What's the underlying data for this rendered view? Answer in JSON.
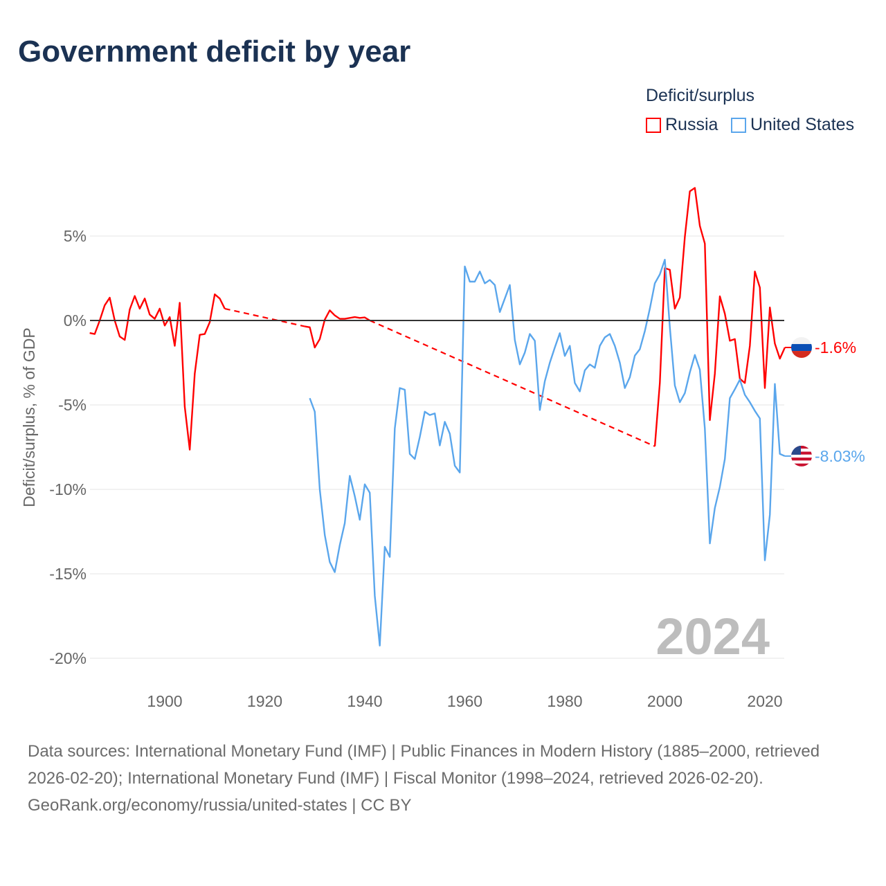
{
  "title": "Government deficit by year",
  "legend": {
    "title": "Deficit/surplus",
    "items": [
      {
        "label": "Russia",
        "color": "#ff0000"
      },
      {
        "label": "United States",
        "color": "#5aa6ec"
      }
    ]
  },
  "footer": {
    "sources": "Data sources: International Monetary Fund (IMF) | Public Finances in Modern History (1885–2000, retrieved 2026-02-20); International Monetary Fund (IMF) | Fiscal Monitor (1998–2024, retrieved 2026-02-20).",
    "credit": "GeoRank.org/economy/russia/united-states | CC BY"
  },
  "chart_data": {
    "type": "line",
    "title": "Government deficit by year",
    "xlabel": "",
    "ylabel": "Deficit/surplus, % of GDP",
    "xlim": [
      1885,
      2024
    ],
    "ylim": [
      -20,
      8
    ],
    "x_ticks": [
      1900,
      1920,
      1940,
      1960,
      1980,
      2000,
      2020
    ],
    "x_tick_labels": [
      "1900",
      "1920",
      "1940",
      "1960",
      "1980",
      "2000",
      "2020"
    ],
    "y_ticks": [
      5,
      0,
      -5,
      -10,
      -15,
      -20
    ],
    "y_tick_labels": [
      "5%",
      "0%",
      "-5%",
      "-10%",
      "-15%",
      "-20%"
    ],
    "grid": true,
    "legend_position": "top-right",
    "year_watermark": "2024",
    "series": [
      {
        "name": "Russia",
        "color": "#ff0000",
        "end_label": "-1.6%",
        "points": [
          [
            1885,
            -0.74
          ],
          [
            1886,
            -0.8
          ],
          [
            1887,
            0.0
          ],
          [
            1888,
            0.9
          ],
          [
            1889,
            1.35
          ],
          [
            1890,
            0.0
          ],
          [
            1891,
            -0.95
          ],
          [
            1892,
            -1.15
          ],
          [
            1893,
            0.65
          ],
          [
            1894,
            1.45
          ],
          [
            1895,
            0.7
          ],
          [
            1896,
            1.3
          ],
          [
            1897,
            0.35
          ],
          [
            1898,
            0.1
          ],
          [
            1899,
            0.7
          ],
          [
            1900,
            -0.3
          ],
          [
            1901,
            0.2
          ],
          [
            1902,
            -1.5
          ],
          [
            1903,
            1.05
          ],
          [
            1904,
            -5.1
          ],
          [
            1905,
            -7.65
          ],
          [
            1906,
            -3.15
          ],
          [
            1907,
            -0.85
          ],
          [
            1908,
            -0.8
          ],
          [
            1909,
            -0.1
          ],
          [
            1910,
            1.55
          ],
          [
            1911,
            1.3
          ],
          [
            1912,
            0.7
          ],
          [
            1928,
            -0.35
          ],
          [
            1929,
            -0.4
          ],
          [
            1930,
            -1.6
          ],
          [
            1931,
            -1.1
          ],
          [
            1932,
            0.05
          ],
          [
            1933,
            0.6
          ],
          [
            1934,
            0.3
          ],
          [
            1935,
            0.1
          ],
          [
            1936,
            0.1
          ],
          [
            1937,
            0.15
          ],
          [
            1938,
            0.2
          ],
          [
            1939,
            0.15
          ],
          [
            1940,
            0.18
          ],
          [
            1941,
            0.0
          ],
          [
            1998,
            -7.45
          ],
          [
            1999,
            -3.7
          ],
          [
            2000,
            3.1
          ],
          [
            2001,
            3.0
          ],
          [
            2002,
            0.7
          ],
          [
            2003,
            1.36
          ],
          [
            2004,
            4.95
          ],
          [
            2005,
            7.65
          ],
          [
            2006,
            7.85
          ],
          [
            2007,
            5.6
          ],
          [
            2008,
            4.55
          ],
          [
            2009,
            -5.9
          ],
          [
            2010,
            -3.15
          ],
          [
            2011,
            1.43
          ],
          [
            2012,
            0.4
          ],
          [
            2013,
            -1.2
          ],
          [
            2014,
            -1.1
          ],
          [
            2015,
            -3.45
          ],
          [
            2016,
            -3.7
          ],
          [
            2017,
            -1.5
          ],
          [
            2018,
            2.9
          ],
          [
            2019,
            1.95
          ],
          [
            2020,
            -4.0
          ],
          [
            2021,
            0.77
          ],
          [
            2022,
            -1.37
          ],
          [
            2023,
            -2.26
          ],
          [
            2024,
            -1.6
          ]
        ]
      },
      {
        "name": "United States",
        "color": "#5aa6ec",
        "end_label": "-8.03%",
        "points": [
          [
            1929,
            -4.6
          ],
          [
            1930,
            -5.4
          ],
          [
            1931,
            -10.0
          ],
          [
            1932,
            -12.7
          ],
          [
            1933,
            -14.3
          ],
          [
            1934,
            -14.9
          ],
          [
            1935,
            -13.3
          ],
          [
            1936,
            -12.0
          ],
          [
            1937,
            -9.2
          ],
          [
            1938,
            -10.4
          ],
          [
            1939,
            -11.8
          ],
          [
            1940,
            -9.7
          ],
          [
            1941,
            -10.2
          ],
          [
            1942,
            -16.3
          ],
          [
            1943,
            -19.25
          ],
          [
            1944,
            -13.4
          ],
          [
            1945,
            -14.0
          ],
          [
            1946,
            -6.4
          ],
          [
            1947,
            -4.0
          ],
          [
            1948,
            -4.1
          ],
          [
            1949,
            -7.9
          ],
          [
            1950,
            -8.2
          ],
          [
            1951,
            -6.9
          ],
          [
            1952,
            -5.4
          ],
          [
            1953,
            -5.6
          ],
          [
            1954,
            -5.5
          ],
          [
            1955,
            -7.4
          ],
          [
            1956,
            -6.0
          ],
          [
            1957,
            -6.7
          ],
          [
            1958,
            -8.6
          ],
          [
            1959,
            -9.0
          ],
          [
            1960,
            3.2
          ],
          [
            1961,
            2.3
          ],
          [
            1962,
            2.3
          ],
          [
            1963,
            2.9
          ],
          [
            1964,
            2.2
          ],
          [
            1965,
            2.4
          ],
          [
            1966,
            2.1
          ],
          [
            1967,
            0.5
          ],
          [
            1968,
            1.3
          ],
          [
            1969,
            2.1
          ],
          [
            1970,
            -1.15
          ],
          [
            1971,
            -2.6
          ],
          [
            1972,
            -1.9
          ],
          [
            1973,
            -0.8
          ],
          [
            1974,
            -1.2
          ],
          [
            1975,
            -5.3
          ],
          [
            1976,
            -3.6
          ],
          [
            1977,
            -2.5
          ],
          [
            1978,
            -1.6
          ],
          [
            1979,
            -0.75
          ],
          [
            1980,
            -2.1
          ],
          [
            1981,
            -1.5
          ],
          [
            1982,
            -3.7
          ],
          [
            1983,
            -4.2
          ],
          [
            1984,
            -2.95
          ],
          [
            1985,
            -2.6
          ],
          [
            1986,
            -2.8
          ],
          [
            1987,
            -1.5
          ],
          [
            1988,
            -1.0
          ],
          [
            1989,
            -0.8
          ],
          [
            1990,
            -1.5
          ],
          [
            1991,
            -2.5
          ],
          [
            1992,
            -4.0
          ],
          [
            1993,
            -3.36
          ],
          [
            1994,
            -2.08
          ],
          [
            1995,
            -1.7
          ],
          [
            1996,
            -0.63
          ],
          [
            1997,
            0.7
          ],
          [
            1998,
            2.2
          ],
          [
            1999,
            2.73
          ],
          [
            2000,
            3.6
          ],
          [
            2001,
            -0.4
          ],
          [
            2002,
            -3.85
          ],
          [
            2003,
            -4.84
          ],
          [
            2004,
            -4.3
          ],
          [
            2005,
            -3.07
          ],
          [
            2006,
            -2.04
          ],
          [
            2007,
            -2.92
          ],
          [
            2008,
            -6.4
          ],
          [
            2009,
            -13.2
          ],
          [
            2010,
            -11.1
          ],
          [
            2011,
            -9.85
          ],
          [
            2012,
            -8.2
          ],
          [
            2013,
            -4.6
          ],
          [
            2014,
            -4.07
          ],
          [
            2015,
            -3.5
          ],
          [
            2016,
            -4.4
          ],
          [
            2017,
            -4.84
          ],
          [
            2018,
            -5.35
          ],
          [
            2019,
            -5.8
          ],
          [
            2020,
            -14.2
          ],
          [
            2021,
            -11.5
          ],
          [
            2022,
            -3.76
          ],
          [
            2023,
            -7.9
          ],
          [
            2024,
            -8.03
          ]
        ]
      }
    ]
  }
}
